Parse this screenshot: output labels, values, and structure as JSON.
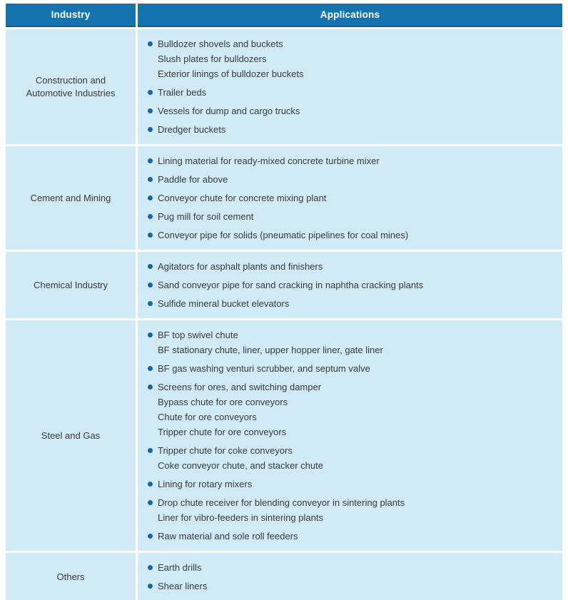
{
  "table": {
    "columns": [
      "Industry",
      "Applications"
    ],
    "rows": [
      {
        "industry": "Construction and Automotive Industries",
        "applications": [
          {
            "bullet": true,
            "text": "Bulldozer shovels and buckets"
          },
          {
            "bullet": false,
            "text": "Slush plates for bulldozers"
          },
          {
            "bullet": false,
            "text": "Exterior linings of bulldozer buckets"
          },
          {
            "bullet": true,
            "text": "Trailer beds"
          },
          {
            "bullet": true,
            "text": "Vessels for dump and cargo trucks"
          },
          {
            "bullet": true,
            "text": "Dredger buckets"
          }
        ]
      },
      {
        "industry": "Cement and Mining",
        "applications": [
          {
            "bullet": true,
            "text": "Lining material for ready-mixed concrete turbine mixer"
          },
          {
            "bullet": true,
            "text": "Paddle for above"
          },
          {
            "bullet": true,
            "text": "Conveyor chute for concrete mixing plant"
          },
          {
            "bullet": true,
            "text": "Pug mill for soil cement"
          },
          {
            "bullet": true,
            "text": "Conveyor pipe for solids (pneumatic pipelines for coal mines)"
          }
        ]
      },
      {
        "industry": "Chemical Industry",
        "applications": [
          {
            "bullet": true,
            "text": "Agitators for asphalt plants and finishers"
          },
          {
            "bullet": true,
            "text": "Sand conveyor pipe for sand cracking in naphtha cracking plants"
          },
          {
            "bullet": true,
            "text": "Sulfide mineral bucket elevators"
          }
        ]
      },
      {
        "industry": "Steel and Gas",
        "applications": [
          {
            "bullet": true,
            "text": "BF top swivel chute"
          },
          {
            "bullet": false,
            "text": "BF stationary chute, liner, upper hopper liner, gate liner"
          },
          {
            "bullet": true,
            "text": "BF gas washing venturi scrubber, and septum valve"
          },
          {
            "bullet": true,
            "text": "Screens for ores, and switching damper"
          },
          {
            "bullet": false,
            "text": "Bypass chute for ore conveyors"
          },
          {
            "bullet": false,
            "text": "Chute for ore conveyors"
          },
          {
            "bullet": false,
            "text": "Tripper chute for ore conveyors"
          },
          {
            "bullet": true,
            "text": "Tripper chute for coke conveyors"
          },
          {
            "bullet": false,
            "text": "Coke conveyor chute, and stacker chute"
          },
          {
            "bullet": true,
            "text": "Lining for rotary mixers"
          },
          {
            "bullet": true,
            "text": "Drop chute receiver for blending conveyor in sintering plants"
          },
          {
            "bullet": false,
            "text": "Liner for vibro-feeders in sintering plants"
          },
          {
            "bullet": true,
            "text": "Raw material and sole roll feeders"
          }
        ]
      },
      {
        "industry": "Others",
        "applications": [
          {
            "bullet": true,
            "text": "Earth drills"
          },
          {
            "bullet": true,
            "text": "Shear liners"
          }
        ]
      }
    ]
  },
  "colors": {
    "header_bg": "#1573ad",
    "header_text": "#ffffff",
    "body_bg": "#d0eaf6",
    "bullet": "#1565a8",
    "text": "#3b3b3b",
    "bottom_rule": "#15547e"
  }
}
